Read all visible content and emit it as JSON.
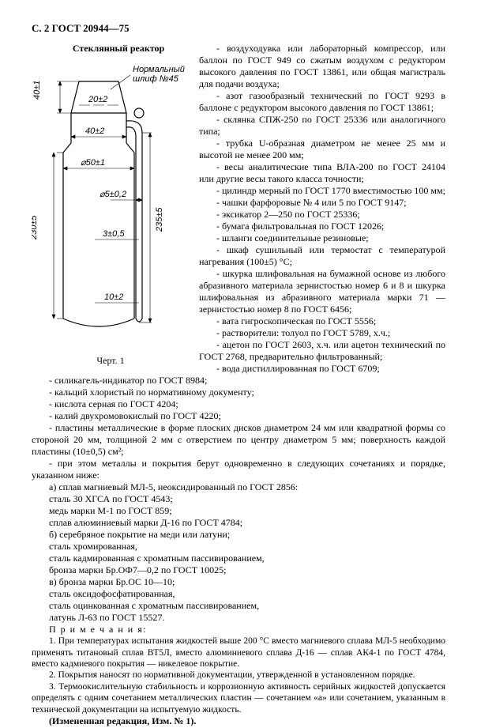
{
  "header": "С. 2 ГОСТ 20944—75",
  "figure": {
    "title": "Стеклянный реактор",
    "caption": "Черт. 1",
    "labels": {
      "joint": "Нормальный\nшлиф №45",
      "h40a": "40±1",
      "d20": "20±2",
      "d40": "40±2",
      "d50": "⌀50±1",
      "d5": "⌀5±0,2",
      "h230": "230±5",
      "h3": "3±0,5",
      "h10": "10±2",
      "h235": "235±5"
    }
  },
  "right_col": [
    "- воздуходувка или лабораторный компрессор, или баллон по ГОСТ 949 со сжатым воздухом с редуктором высокого давления по ГОСТ 13861, или общая магистраль для подачи воздуха;",
    "- азот газообразный технический по ГОСТ 9293 в баллоне с редуктором высокого давления по ГОСТ 13861;",
    "- склянка СПЖ-250 по ГОСТ 25336 или аналогичного типа;",
    "- трубка U-образная диаметром не менее 25 мм и высотой не менее 200 мм;",
    "- весы аналитические типа ВЛА-200 по ГОСТ 24104 или другие весы такого класса точности;",
    "- цилиндр мерный по ГОСТ 1770 вместимостью 100 мм;",
    "- чашки фарфоровые № 4 или 5 по ГОСТ 9147;",
    "- эксикатор 2—250 по ГОСТ 25336;",
    "- бумага фильтровальная по ГОСТ 12026;",
    "- шланги соединительные резиновые;",
    "- шкаф сушильный или термостат с температурой нагревания (100±5) °С;",
    "- шкурка шлифовальная на бумажной основе из любого абразивного материала зернистостью номер 6 и 8 и шкурка шлифовальная из абразивного материала марки 71 — зернистостью номер 8 по ГОСТ 6456;",
    "- вата гигроскопическая по ГОСТ 5556;",
    "- растворители: толуол по ГОСТ 5789, х.ч.;",
    "- ацетон по ГОСТ 2603, х.ч. или ацетон технический по ГОСТ 2768, предварительно фильтрованный;",
    "- вода дистиллированная по ГОСТ 6709;",
    "- силикагель-индикатор по ГОСТ 8984;"
  ],
  "full": [
    "- кальций хлористый по нормативному документу;",
    "- кислота серная по ГОСТ 4204;",
    "- калий двухромовокислый по ГОСТ 4220;",
    "- пластины металлические в форме плоских дисков диаметром 24 мм или квадратной формы со стороной 20 мм, толщиной 2 мм с отверстием по центру диаметром 5 мм; поверхность каждой пластины (10±0,5) см²;",
    "- при этом металлы и покрытия берут одновременно в следующих сочетаниях и порядке, указанном ниже:",
    "а) сплав магниевый МЛ-5, неоксидированный по ГОСТ 2856:",
    "сталь 30 ХГСА по ГОСТ 4543;",
    "медь марки М-1 по ГОСТ 859;",
    "сплав алюминиевый марки Д-16 по ГОСТ 4784;",
    "б) серебряное покрытие на меди или латуни;",
    "сталь хромированная,",
    "сталь кадмированная с хроматным пассивированием,",
    "бронза марки Бр.ОФ7—0,2 по ГОСТ 10025;",
    "в) бронза марки Бр.ОС 10—10;",
    "сталь оксидофосфатированная,",
    "сталь оцинкованная с хроматным пассивированием,",
    "латунь Л-63 по ГОСТ 15527."
  ],
  "notes_header": "П р и м е ч а н и я:",
  "notes": [
    "1. При температурах испытания жидкостей выше 200 °С вместо магниевого сплава МЛ-5 необходимо применять титановый сплав ВТ5Л, вместо алюминиевого сплава Д-16 — сплав АК4-1 по ГОСТ 4784, вместо кадмиевого покрытия — никелевое покрытие.",
    "2. Покрытия наносят по нормативной документации, утвержденной в установленном порядке.",
    "3. Термоокислительную стабильность и коррозионную активность серийных жидкостей допускается определять с одним сочетанием металлических пластин — сочетанием «а» или сочетанием, указанным в технической документации на испытуемую жидкость."
  ],
  "amendment": "(Измененная редакция, Изм. № 1)."
}
